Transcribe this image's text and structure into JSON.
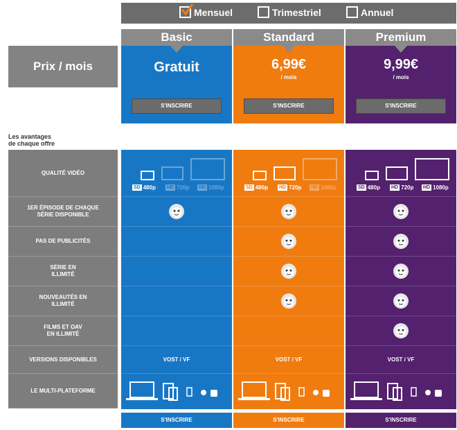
{
  "period_selector": {
    "options": [
      {
        "label": "Mensuel",
        "checked": true
      },
      {
        "label": "Trimestriel",
        "checked": false
      },
      {
        "label": "Annuel",
        "checked": false
      }
    ]
  },
  "prix_label": "Prix / mois",
  "avantages_line1": "Les avantages",
  "avantages_line2": "de chaque offre",
  "rows": {
    "qualite": "QUALITÉ VIDÉO",
    "episode_line1": "1ER ÉPISODE DE CHAQUE",
    "episode_line2": "SÉRIE DISPONIBLE",
    "pub": "PAS DE PUBLICITÉS",
    "serie_line1": "SÉRIE EN",
    "serie_line2": "ILLIMITÉ",
    "nouveautes_line1": "NOUVEAUTÉS EN",
    "nouveautes_line2": "ILLIMITÉ",
    "films_line1": "FILMS ET OAV",
    "films_line2": "EN ILLIMITÉ",
    "versions": "VERSIONS DISPONIBLES",
    "multi": "LE MULTI-PLATEFORME"
  },
  "quality_labels": {
    "sd_tag": "SD",
    "sd_res": "480p",
    "hd_tag": "HD",
    "hd720_res": "720p",
    "hd1080_res": "1080p"
  },
  "plans": [
    {
      "name": "Basic",
      "price": "Gratuit",
      "unit": "",
      "signup": "S'INSCRIRE",
      "versions": "VOST / VF",
      "color": "#1877c5"
    },
    {
      "name": "Standard",
      "price": "6,99€",
      "unit": "/ mois",
      "signup": "S'INSCRIRE",
      "versions": "VOST / VF",
      "color": "#f07c10"
    },
    {
      "name": "Premium",
      "price": "9,99€",
      "unit": "/ mois",
      "signup": "S'INSCRIRE",
      "versions": "VOST / VF",
      "color": "#53216d"
    }
  ]
}
